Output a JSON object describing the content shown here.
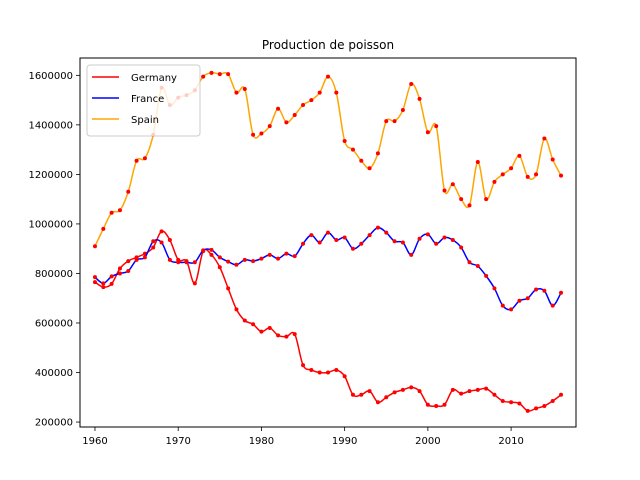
{
  "chart_data": {
    "type": "line",
    "title": "Production de poisson",
    "xlabel": "",
    "ylabel": "",
    "xlim": [
      1958.2,
      2017.8
    ],
    "ylim": [
      180000,
      1670000
    ],
    "x_ticks": [
      1960,
      1970,
      1980,
      1990,
      2000,
      2010
    ],
    "y_ticks": [
      200000,
      400000,
      600000,
      800000,
      1000000,
      1200000,
      1400000,
      1600000
    ],
    "grid": false,
    "legend_position": "top-left",
    "marker_color": "#ff0000",
    "x": [
      1960,
      1961,
      1962,
      1963,
      1964,
      1965,
      1966,
      1967,
      1968,
      1969,
      1970,
      1971,
      1972,
      1973,
      1974,
      1975,
      1976,
      1977,
      1978,
      1979,
      1980,
      1981,
      1982,
      1983,
      1984,
      1985,
      1986,
      1987,
      1988,
      1989,
      1990,
      1991,
      1992,
      1993,
      1994,
      1995,
      1996,
      1997,
      1998,
      1999,
      2000,
      2001,
      2002,
      2003,
      2004,
      2005,
      2006,
      2007,
      2008,
      2009,
      2010,
      2011,
      2012,
      2013,
      2014,
      2015,
      2016
    ],
    "series": [
      {
        "name": "Germany",
        "color": "#ff0000",
        "values": [
          765000,
          745000,
          758000,
          820000,
          850000,
          865000,
          880000,
          905000,
          970000,
          935000,
          855000,
          850000,
          760000,
          890000,
          875000,
          825000,
          740000,
          655000,
          610000,
          595000,
          565000,
          580000,
          550000,
          545000,
          555000,
          430000,
          410000,
          400000,
          400000,
          410000,
          385000,
          310000,
          310000,
          325000,
          280000,
          300000,
          320000,
          330000,
          340000,
          325000,
          270000,
          265000,
          270000,
          330000,
          315000,
          325000,
          330000,
          335000,
          310000,
          285000,
          280000,
          275000,
          245000,
          255000,
          265000,
          285000,
          310000
        ]
      },
      {
        "name": "France",
        "color": "#0000ff",
        "values": [
          785000,
          760000,
          788000,
          800000,
          810000,
          855000,
          865000,
          930000,
          925000,
          855000,
          845000,
          845000,
          845000,
          893000,
          895000,
          865000,
          848000,
          835000,
          855000,
          850000,
          860000,
          875000,
          860000,
          880000,
          870000,
          920000,
          955000,
          925000,
          965000,
          935000,
          945000,
          900000,
          920000,
          955000,
          985000,
          965000,
          930000,
          925000,
          875000,
          940000,
          958000,
          920000,
          945000,
          935000,
          905000,
          845000,
          830000,
          790000,
          740000,
          670000,
          655000,
          690000,
          700000,
          735000,
          730000,
          670000,
          722000
        ]
      },
      {
        "name": "Spain",
        "color": "#ffa500",
        "values": [
          910000,
          980000,
          1045000,
          1055000,
          1130000,
          1255000,
          1265000,
          1360000,
          1550000,
          1480000,
          1510000,
          1520000,
          1540000,
          1595000,
          1610000,
          1605000,
          1605000,
          1530000,
          1545000,
          1360000,
          1365000,
          1395000,
          1465000,
          1410000,
          1440000,
          1480000,
          1500000,
          1530000,
          1595000,
          1530000,
          1335000,
          1300000,
          1255000,
          1225000,
          1285000,
          1415000,
          1415000,
          1460000,
          1565000,
          1505000,
          1370000,
          1395000,
          1135000,
          1160000,
          1100000,
          1075000,
          1250000,
          1100000,
          1170000,
          1200000,
          1225000,
          1275000,
          1190000,
          1200000,
          1345000,
          1260000,
          1195000
        ]
      }
    ]
  }
}
